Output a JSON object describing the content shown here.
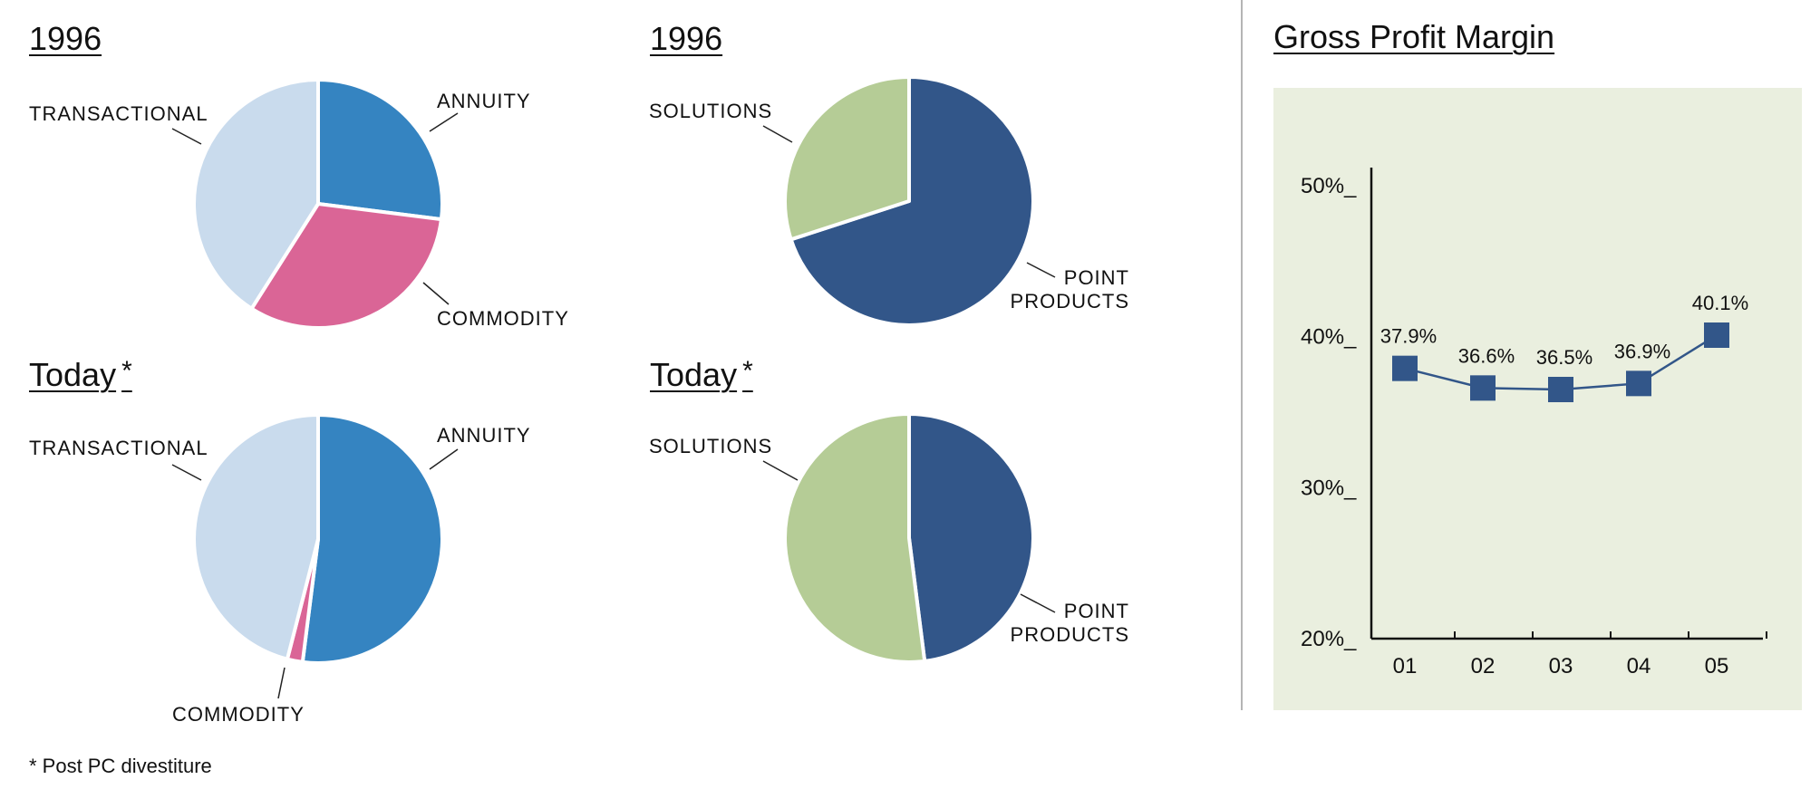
{
  "pies": [
    {
      "title": "1996",
      "star": "",
      "slices": [
        {
          "label": "ANNUITY",
          "value": 27,
          "color": "#3584c1"
        },
        {
          "label": "COMMODITY",
          "value": 32,
          "color": "#da6596"
        },
        {
          "label": "TRANSACTIONAL",
          "value": 41,
          "color": "#c9dbed"
        }
      ]
    },
    {
      "title": "1996",
      "star": "",
      "slices": [
        {
          "label": "POINT PRODUCTS",
          "value": 70,
          "color": "#325689"
        },
        {
          "label": "SOLUTIONS",
          "value": 30,
          "color": "#b5cc96"
        }
      ]
    },
    {
      "title": "Today",
      "star": "*",
      "slices": [
        {
          "label": "ANNUITY",
          "value": 52,
          "color": "#3584c1"
        },
        {
          "label": "COMMODITY",
          "value": 2,
          "color": "#da6596"
        },
        {
          "label": "TRANSACTIONAL",
          "value": 46,
          "color": "#c9dbed"
        }
      ]
    },
    {
      "title": "Today",
      "star": "*",
      "slices": [
        {
          "label": "POINT PRODUCTS",
          "value": 48,
          "color": "#325689"
        },
        {
          "label": "SOLUTIONS",
          "value": 52,
          "color": "#b5cc96"
        }
      ]
    }
  ],
  "labels": {
    "point_products_line1": "POINT",
    "point_products_line2": "PRODUCTS"
  },
  "chart_data": {
    "type": "line",
    "title": "Gross Profit Margin",
    "x": [
      "01",
      "02",
      "03",
      "04",
      "05"
    ],
    "series": [
      {
        "values": [
          37.9,
          36.6,
          36.5,
          36.9,
          40.1
        ],
        "labels": [
          "37.9%",
          "36.6%",
          "36.5%",
          "36.9%",
          "40.1%"
        ],
        "color": "#325689"
      }
    ],
    "ylim": [
      20,
      50
    ],
    "yticks": [
      {
        "value": 50,
        "label": "50%_"
      },
      {
        "value": 40,
        "label": "40%_"
      },
      {
        "value": 30,
        "label": "30%_"
      },
      {
        "value": 20,
        "label": "20%_"
      }
    ],
    "background": "#eaefdf"
  },
  "footnote": "* Post PC divestiture"
}
